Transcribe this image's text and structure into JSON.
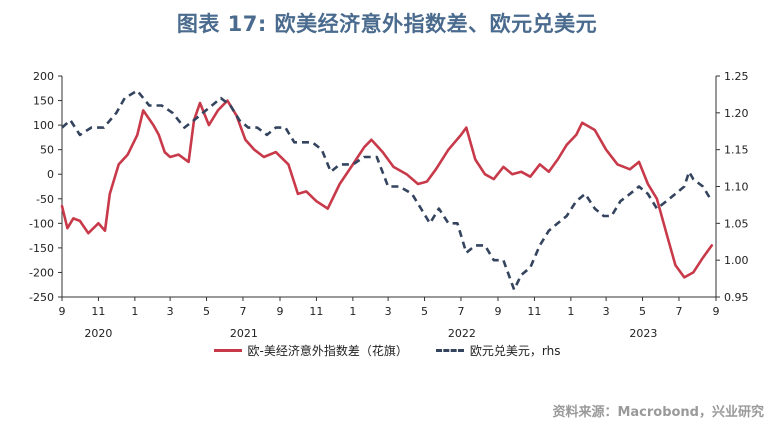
{
  "title": "图表 17: 欧美经济意外指数差、欧元兑美元",
  "source": "资料来源：Macrobond，兴业研究",
  "colors": {
    "surprise": "#c8394a",
    "eurusd": "#34445e",
    "title": "#4a6b8e"
  },
  "chart_data": {
    "type": "line",
    "left_axis": {
      "ylim": [
        -250,
        200
      ],
      "ticks": [
        200,
        150,
        100,
        50,
        0,
        -50,
        -100,
        -150,
        -200,
        -250
      ]
    },
    "right_axis": {
      "ylim": [
        0.95,
        1.25
      ],
      "ticks": [
        "1.25",
        "1.20",
        "1.15",
        "1.10",
        "1.05",
        "1.00",
        "0.95"
      ]
    },
    "x_ticks": [
      "9",
      "11",
      "1",
      "3",
      "5",
      "7",
      "9",
      "11",
      "1",
      "3",
      "5",
      "7",
      "9",
      "11",
      "1",
      "3",
      "5",
      "7",
      "9"
    ],
    "years": [
      "2020",
      "2021",
      "2022",
      "2023"
    ],
    "x_range": [
      "2020-09-01",
      "2023-09-01"
    ],
    "series": [
      {
        "name": "欧-美经济意外指数差（花旗）",
        "axis": "left",
        "style": "solid",
        "points": [
          [
            "2020-09-01",
            -65
          ],
          [
            "2020-09-10",
            -110
          ],
          [
            "2020-09-20",
            -90
          ],
          [
            "2020-10-01",
            -95
          ],
          [
            "2020-10-15",
            -120
          ],
          [
            "2020-11-01",
            -100
          ],
          [
            "2020-11-12",
            -115
          ],
          [
            "2020-11-20",
            -40
          ],
          [
            "2020-12-05",
            20
          ],
          [
            "2020-12-20",
            40
          ],
          [
            "2021-01-05",
            80
          ],
          [
            "2021-01-15",
            130
          ],
          [
            "2021-02-01",
            100
          ],
          [
            "2021-02-10",
            80
          ],
          [
            "2021-02-20",
            45
          ],
          [
            "2021-03-01",
            35
          ],
          [
            "2021-03-15",
            40
          ],
          [
            "2021-04-01",
            25
          ],
          [
            "2021-04-10",
            110
          ],
          [
            "2021-04-20",
            145
          ],
          [
            "2021-05-05",
            100
          ],
          [
            "2021-05-20",
            130
          ],
          [
            "2021-06-05",
            150
          ],
          [
            "2021-06-20",
            120
          ],
          [
            "2021-07-05",
            70
          ],
          [
            "2021-07-20",
            50
          ],
          [
            "2021-08-05",
            35
          ],
          [
            "2021-08-25",
            45
          ],
          [
            "2021-09-15",
            20
          ],
          [
            "2021-10-01",
            -40
          ],
          [
            "2021-10-15",
            -35
          ],
          [
            "2021-11-01",
            -55
          ],
          [
            "2021-11-20",
            -70
          ],
          [
            "2021-12-10",
            -20
          ],
          [
            "2022-01-01",
            20
          ],
          [
            "2022-01-20",
            55
          ],
          [
            "2022-02-01",
            70
          ],
          [
            "2022-02-20",
            45
          ],
          [
            "2022-03-10",
            15
          ],
          [
            "2022-04-01",
            0
          ],
          [
            "2022-04-20",
            -20
          ],
          [
            "2022-05-05",
            -15
          ],
          [
            "2022-05-20",
            10
          ],
          [
            "2022-06-10",
            50
          ],
          [
            "2022-07-01",
            80
          ],
          [
            "2022-07-10",
            95
          ],
          [
            "2022-07-25",
            30
          ],
          [
            "2022-08-10",
            0
          ],
          [
            "2022-08-25",
            -10
          ],
          [
            "2022-09-10",
            15
          ],
          [
            "2022-09-25",
            0
          ],
          [
            "2022-10-10",
            5
          ],
          [
            "2022-10-25",
            -5
          ],
          [
            "2022-11-10",
            20
          ],
          [
            "2022-11-25",
            5
          ],
          [
            "2022-12-10",
            30
          ],
          [
            "2022-12-25",
            60
          ],
          [
            "2023-01-10",
            80
          ],
          [
            "2023-01-20",
            105
          ],
          [
            "2023-02-10",
            90
          ],
          [
            "2023-03-01",
            50
          ],
          [
            "2023-03-20",
            20
          ],
          [
            "2023-04-10",
            10
          ],
          [
            "2023-04-25",
            25
          ],
          [
            "2023-05-10",
            -20
          ],
          [
            "2023-05-25",
            -50
          ],
          [
            "2023-06-10",
            -120
          ],
          [
            "2023-06-25",
            -185
          ],
          [
            "2023-07-10",
            -210
          ],
          [
            "2023-07-25",
            -200
          ],
          [
            "2023-08-10",
            -170
          ],
          [
            "2023-08-25",
            -145
          ]
        ]
      },
      {
        "name": "欧元兑美元，rhs",
        "axis": "right",
        "style": "dashed",
        "points": [
          [
            "2020-09-01",
            1.18
          ],
          [
            "2020-09-15",
            1.19
          ],
          [
            "2020-10-01",
            1.17
          ],
          [
            "2020-10-20",
            1.18
          ],
          [
            "2020-11-10",
            1.18
          ],
          [
            "2020-12-01",
            1.2
          ],
          [
            "2020-12-15",
            1.22
          ],
          [
            "2021-01-05",
            1.23
          ],
          [
            "2021-01-25",
            1.21
          ],
          [
            "2021-02-15",
            1.21
          ],
          [
            "2021-03-05",
            1.2
          ],
          [
            "2021-03-25",
            1.18
          ],
          [
            "2021-04-10",
            1.19
          ],
          [
            "2021-04-25",
            1.2
          ],
          [
            "2021-05-10",
            1.21
          ],
          [
            "2021-05-25",
            1.22
          ],
          [
            "2021-06-10",
            1.21
          ],
          [
            "2021-06-25",
            1.19
          ],
          [
            "2021-07-10",
            1.18
          ],
          [
            "2021-07-25",
            1.18
          ],
          [
            "2021-08-10",
            1.17
          ],
          [
            "2021-08-25",
            1.18
          ],
          [
            "2021-09-10",
            1.18
          ],
          [
            "2021-09-25",
            1.16
          ],
          [
            "2021-10-10",
            1.16
          ],
          [
            "2021-10-25",
            1.16
          ],
          [
            "2021-11-10",
            1.15
          ],
          [
            "2021-11-25",
            1.12
          ],
          [
            "2021-12-10",
            1.13
          ],
          [
            "2022-01-01",
            1.13
          ],
          [
            "2022-01-20",
            1.14
          ],
          [
            "2022-02-10",
            1.14
          ],
          [
            "2022-03-01",
            1.1
          ],
          [
            "2022-03-20",
            1.1
          ],
          [
            "2022-04-10",
            1.09
          ],
          [
            "2022-04-25",
            1.07
          ],
          [
            "2022-05-10",
            1.05
          ],
          [
            "2022-05-25",
            1.07
          ],
          [
            "2022-06-10",
            1.05
          ],
          [
            "2022-06-25",
            1.05
          ],
          [
            "2022-07-10",
            1.01
          ],
          [
            "2022-07-25",
            1.02
          ],
          [
            "2022-08-10",
            1.02
          ],
          [
            "2022-08-25",
            1.0
          ],
          [
            "2022-09-10",
            1.0
          ],
          [
            "2022-09-28",
            0.96
          ],
          [
            "2022-10-10",
            0.98
          ],
          [
            "2022-10-25",
            0.99
          ],
          [
            "2022-11-10",
            1.02
          ],
          [
            "2022-11-25",
            1.04
          ],
          [
            "2022-12-10",
            1.05
          ],
          [
            "2022-12-25",
            1.06
          ],
          [
            "2023-01-10",
            1.08
          ],
          [
            "2023-01-25",
            1.09
          ],
          [
            "2023-02-10",
            1.07
          ],
          [
            "2023-02-25",
            1.06
          ],
          [
            "2023-03-10",
            1.06
          ],
          [
            "2023-03-25",
            1.08
          ],
          [
            "2023-04-10",
            1.09
          ],
          [
            "2023-04-25",
            1.1
          ],
          [
            "2023-05-10",
            1.09
          ],
          [
            "2023-05-25",
            1.07
          ],
          [
            "2023-06-10",
            1.08
          ],
          [
            "2023-06-25",
            1.09
          ],
          [
            "2023-07-10",
            1.1
          ],
          [
            "2023-07-18",
            1.12
          ],
          [
            "2023-07-25",
            1.11
          ],
          [
            "2023-08-10",
            1.1
          ],
          [
            "2023-08-25",
            1.08
          ]
        ]
      }
    ]
  }
}
